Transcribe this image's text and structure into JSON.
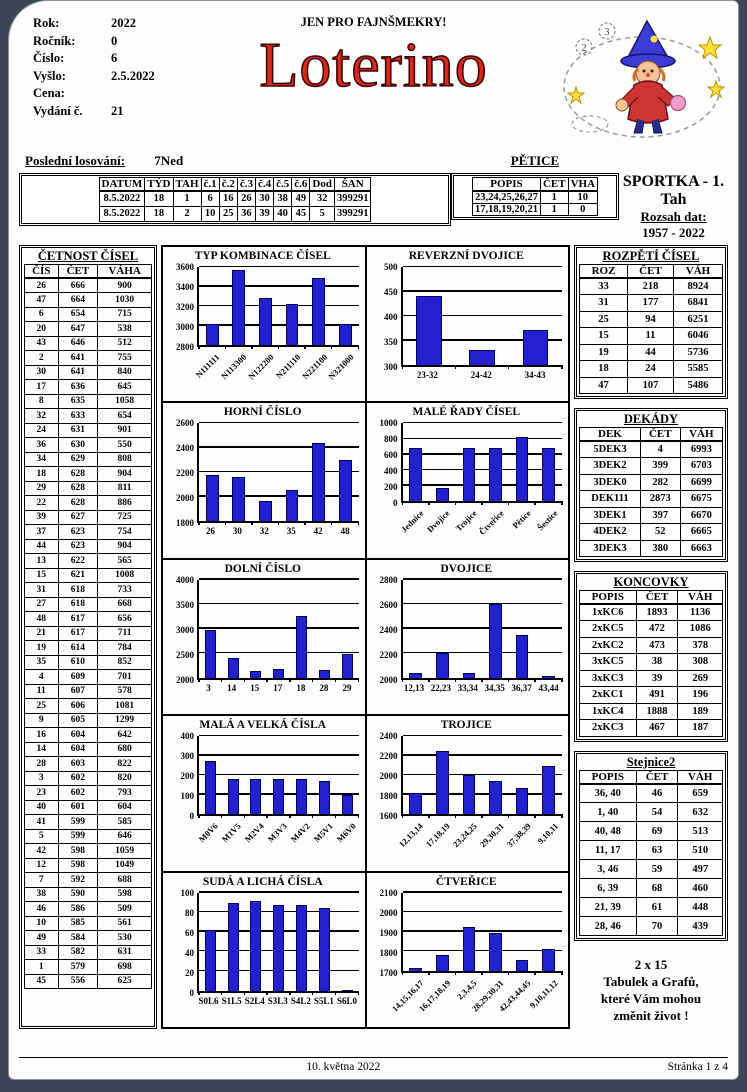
{
  "header_fields": [
    {
      "label": "Rok:",
      "value": "2022"
    },
    {
      "label": "Ročník:",
      "value": "0"
    },
    {
      "label": "Číslo:",
      "value": "6"
    },
    {
      "label": "Vyšlo:",
      "value": "2.5.2022"
    },
    {
      "label": "Cena:",
      "value": ""
    },
    {
      "label": "Vydání č.",
      "value": "21"
    }
  ],
  "slogan": "JEN PRO FAJNŠMEKRY!",
  "title": "Loterino",
  "last_draw": {
    "label": "Poslední losování:",
    "value": "7Ned"
  },
  "draw_table": {
    "headers": [
      "DATUM",
      "TÝD",
      "TAH",
      "č.1",
      "č.2",
      "č.3",
      "č.4",
      "č.5",
      "č.6",
      "Dod",
      "ŠAN"
    ],
    "rows": [
      [
        "8.5.2022",
        "18",
        "1",
        "6",
        "16",
        "26",
        "30",
        "38",
        "49",
        "32",
        "399291"
      ],
      [
        "8.5.2022",
        "18",
        "2",
        "10",
        "25",
        "36",
        "39",
        "40",
        "45",
        "5",
        "399291"
      ]
    ]
  },
  "petice": {
    "title": "PĚTICE",
    "headers": [
      "POPIS",
      "ČET",
      "VHA"
    ],
    "rows": [
      [
        "23,24,25,26,27",
        "1",
        "10"
      ],
      [
        "17,18,19,20,21",
        "1",
        "0"
      ]
    ]
  },
  "sportka": {
    "title": "SPORTKA - 1. Tah",
    "subtitle": "Rozsah dat:",
    "range": "1957 -  2022"
  },
  "cetnost": {
    "title": "ČETNOST ČÍSEL",
    "headers": [
      "ČÍS",
      "ČET",
      "VÁHA"
    ],
    "rows": [
      [
        "26",
        "666",
        "900"
      ],
      [
        "47",
        "664",
        "1030"
      ],
      [
        "6",
        "654",
        "715"
      ],
      [
        "20",
        "647",
        "538"
      ],
      [
        "43",
        "646",
        "512"
      ],
      [
        "2",
        "641",
        "755"
      ],
      [
        "30",
        "641",
        "840"
      ],
      [
        "17",
        "636",
        "645"
      ],
      [
        "8",
        "635",
        "1058"
      ],
      [
        "32",
        "633",
        "654"
      ],
      [
        "24",
        "631",
        "901"
      ],
      [
        "36",
        "630",
        "550"
      ],
      [
        "34",
        "629",
        "808"
      ],
      [
        "18",
        "628",
        "904"
      ],
      [
        "29",
        "628",
        "811"
      ],
      [
        "22",
        "628",
        "886"
      ],
      [
        "39",
        "627",
        "725"
      ],
      [
        "37",
        "623",
        "754"
      ],
      [
        "44",
        "623",
        "904"
      ],
      [
        "13",
        "622",
        "565"
      ],
      [
        "15",
        "621",
        "1008"
      ],
      [
        "31",
        "618",
        "733"
      ],
      [
        "27",
        "618",
        "668"
      ],
      [
        "48",
        "617",
        "656"
      ],
      [
        "21",
        "617",
        "711"
      ],
      [
        "19",
        "614",
        "784"
      ],
      [
        "35",
        "610",
        "852"
      ],
      [
        "4",
        "609",
        "701"
      ],
      [
        "11",
        "607",
        "578"
      ],
      [
        "25",
        "606",
        "1081"
      ],
      [
        "9",
        "605",
        "1299"
      ],
      [
        "16",
        "604",
        "642"
      ],
      [
        "14",
        "604",
        "680"
      ],
      [
        "28",
        "603",
        "822"
      ],
      [
        "3",
        "602",
        "820"
      ],
      [
        "23",
        "602",
        "793"
      ],
      [
        "40",
        "601",
        "604"
      ],
      [
        "41",
        "599",
        "585"
      ],
      [
        "5",
        "599",
        "646"
      ],
      [
        "42",
        "598",
        "1059"
      ],
      [
        "12",
        "598",
        "1049"
      ],
      [
        "7",
        "592",
        "688"
      ],
      [
        "38",
        "590",
        "598"
      ],
      [
        "46",
        "586",
        "509"
      ],
      [
        "10",
        "585",
        "561"
      ],
      [
        "49",
        "584",
        "530"
      ],
      [
        "33",
        "582",
        "631"
      ],
      [
        "1",
        "579",
        "698"
      ],
      [
        "45",
        "556",
        "625"
      ]
    ]
  },
  "rozpeti": {
    "title": "ROZPĚTÍ ČÍSEL",
    "headers": [
      "ROZ",
      "ČET",
      "VÁH"
    ],
    "rows": [
      [
        "33",
        "218",
        "8924"
      ],
      [
        "31",
        "177",
        "6841"
      ],
      [
        "25",
        "94",
        "6251"
      ],
      [
        "15",
        "11",
        "6046"
      ],
      [
        "19",
        "44",
        "5736"
      ],
      [
        "18",
        "24",
        "5585"
      ],
      [
        "47",
        "107",
        "5486"
      ]
    ]
  },
  "dekady": {
    "title": "DEKÁDY",
    "headers": [
      "DEK",
      "ČET",
      "VÁH"
    ],
    "rows": [
      [
        "5DEK3",
        "4",
        "6993"
      ],
      [
        "3DEK2",
        "399",
        "6703"
      ],
      [
        "3DEK0",
        "282",
        "6699"
      ],
      [
        "DEK111",
        "2873",
        "6675"
      ],
      [
        "3DEK1",
        "397",
        "6670"
      ],
      [
        "4DEK2",
        "52",
        "6665"
      ],
      [
        "3DEK3",
        "380",
        "6663"
      ]
    ]
  },
  "koncovky": {
    "title": "KONCOVKY",
    "headers": [
      "POPIS",
      "ČET",
      "VÁH"
    ],
    "rows": [
      [
        "1xKC6",
        "1893",
        "1136"
      ],
      [
        "2xKC5",
        "472",
        "1086"
      ],
      [
        "2xKC2",
        "473",
        "378"
      ],
      [
        "3xKC5",
        "38",
        "308"
      ],
      [
        "3xKC3",
        "39",
        "269"
      ],
      [
        "2xKC1",
        "491",
        "196"
      ],
      [
        "1xKC4",
        "1888",
        "189"
      ],
      [
        "2xKC3",
        "467",
        "187"
      ]
    ]
  },
  "stejnice2": {
    "title": "Stejnice2",
    "headers": [
      "POPIS",
      "ČET",
      "VÁH"
    ],
    "rows": [
      [
        "36, 40",
        "46",
        "659"
      ],
      [
        "1, 40",
        "54",
        "632"
      ],
      [
        "40, 48",
        "69",
        "513"
      ],
      [
        "11, 17",
        "63",
        "510"
      ],
      [
        "3, 46",
        "59",
        "497"
      ],
      [
        "6, 39",
        "68",
        "460"
      ],
      [
        "21, 39",
        "61",
        "448"
      ],
      [
        "28, 46",
        "70",
        "439"
      ]
    ]
  },
  "promo": {
    "lines": [
      "2 x 15",
      "Tabulek a Grafů,",
      "které Vám mohou",
      "změnit život !"
    ]
  },
  "footer": {
    "date": "10. května 2022",
    "page": "Stránka 1 z 4"
  },
  "colors": {
    "bar_fill": "#2121cd",
    "bar_border": "#000060",
    "title_red": "#d8281c"
  },
  "chart_data": [
    {
      "type": "bar",
      "title": "TYP KOMBINACE ČÍSEL",
      "categories": [
        "N111111",
        "N113300",
        "N122200",
        "N211110",
        "N221100",
        "N321000"
      ],
      "values": [
        3020,
        3570,
        3280,
        3220,
        3490,
        3020
      ],
      "ylim": [
        2800,
        3600
      ],
      "ytick_step": 200,
      "rotate_labels": true
    },
    {
      "type": "bar",
      "title": "REVERZNÍ DVOJICE",
      "categories": [
        "23-32",
        "24-42",
        "34-43"
      ],
      "values": [
        440,
        330,
        372
      ],
      "ylim": [
        300,
        500
      ],
      "ytick_step": 50,
      "rotate_labels": false
    },
    {
      "type": "bar",
      "title": "HORNÍ ČÍSLO",
      "categories": [
        "26",
        "30",
        "32",
        "35",
        "42",
        "48"
      ],
      "values": [
        2175,
        2160,
        1970,
        2055,
        2440,
        2305
      ],
      "ylim": [
        1800,
        2600
      ],
      "ytick_step": 200,
      "rotate_labels": false
    },
    {
      "type": "bar",
      "title": "MALÉ ŘADY ČÍSEL",
      "categories": [
        "Jednice",
        "Dvojice",
        "Trojice",
        "Čtveřice",
        "Pětice",
        "Šestice"
      ],
      "values": [
        680,
        170,
        680,
        680,
        830,
        680
      ],
      "ylim": [
        0,
        1000
      ],
      "ytick_step": 200,
      "rotate_labels": true
    },
    {
      "type": "bar",
      "title": "DOLNÍ ČÍSLO",
      "categories": [
        "3",
        "14",
        "15",
        "17",
        "18",
        "28",
        "29"
      ],
      "values": [
        2980,
        2410,
        2140,
        2170,
        3255,
        2150,
        2490
      ],
      "ylim": [
        2000,
        4000
      ],
      "ytick_step": 500,
      "rotate_labels": false
    },
    {
      "type": "bar",
      "title": "DVOJICE",
      "categories": [
        "12,13",
        "22,23",
        "33,34",
        "34,35",
        "36,37",
        "43,44"
      ],
      "values": [
        2040,
        2200,
        2040,
        2600,
        2350,
        2015
      ],
      "ylim": [
        2000,
        2800
      ],
      "ytick_step": 200,
      "rotate_labels": false
    },
    {
      "type": "bar",
      "title": "MALÁ A VELKÁ ČÍSLA",
      "categories": [
        "M0V6",
        "M1V5",
        "M2V4",
        "M3V3",
        "M4V2",
        "M5V1",
        "M6V0"
      ],
      "values": [
        272,
        178,
        178,
        178,
        178,
        168,
        97
      ],
      "ylim": [
        0,
        400
      ],
      "ytick_step": 100,
      "rotate_labels": true
    },
    {
      "type": "bar",
      "title": "TROJICE",
      "categories": [
        "12,13,14",
        "17,18,19",
        "23,24,25",
        "29,30,31",
        "37,38,39",
        "9,10,11"
      ],
      "values": [
        1815,
        2245,
        2000,
        1945,
        1870,
        2095
      ],
      "ylim": [
        1600,
        2400
      ],
      "ytick_step": 200,
      "rotate_labels": true
    },
    {
      "type": "bar",
      "title": "SUDÁ A LICHÁ ČÍSLA",
      "categories": [
        "S0L6",
        "S1L5",
        "S2L4",
        "S3L3",
        "S4L2",
        "S5L1",
        "S6L0"
      ],
      "values": [
        62,
        89,
        91,
        87,
        87,
        84,
        1
      ],
      "ylim": [
        0,
        100
      ],
      "ytick_step": 20,
      "rotate_labels": false
    },
    {
      "type": "bar",
      "title": "ČTVEŘICE",
      "categories": [
        "14,15,16,17",
        "16,17,18,19",
        "2,3,4,5",
        "28,29,30,31",
        "42,43,44,45",
        "9,10,11,12"
      ],
      "values": [
        1712,
        1780,
        1925,
        1895,
        1755,
        1812
      ],
      "ylim": [
        1700,
        2100
      ],
      "ytick_step": 100,
      "rotate_labels": true
    }
  ]
}
